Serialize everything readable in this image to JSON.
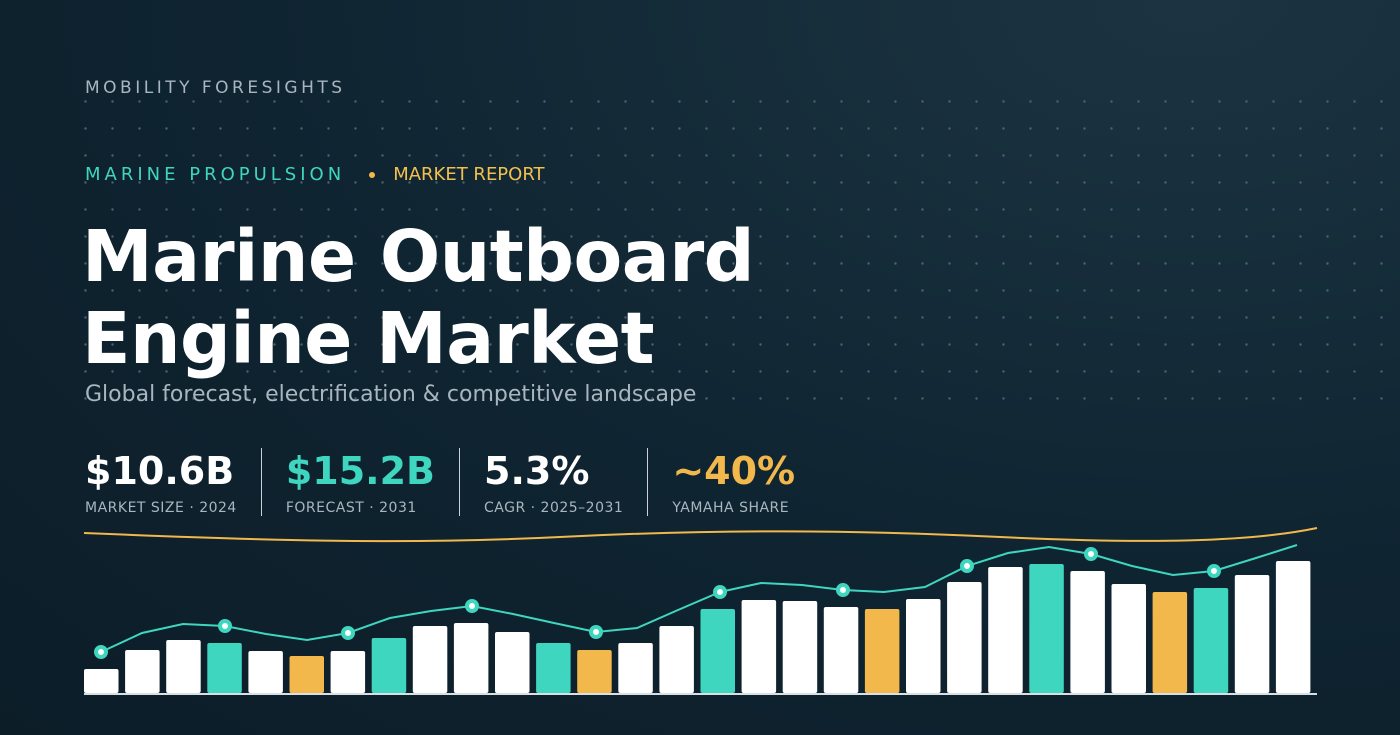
{
  "brand": "MOBILITY FORESIGHTS",
  "tags": [
    "MARINE PROPULSION",
    "MARKET REPORT"
  ],
  "title": [
    "Marine Outboard",
    "Engine Market"
  ],
  "subtitle": "Global forecast, electrification & competitive landscape",
  "stats": [
    {
      "value": "$10.6B",
      "label": "MARKET SIZE · 2024",
      "color": "#ffffff"
    },
    {
      "value": "$15.2B",
      "label": "FORECAST · 2031",
      "color": "#3fd6c0"
    },
    {
      "value": "5.3%",
      "label": "CAGR · 2025–2031",
      "color": "#ffffff"
    },
    {
      "value": "~40%",
      "label": "YAMAHA SHARE",
      "color": "#f2b84b"
    }
  ]
}
